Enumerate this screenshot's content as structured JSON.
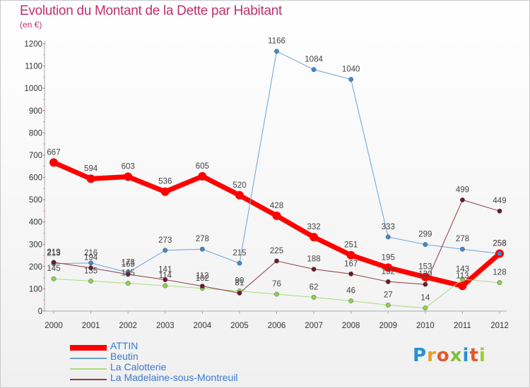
{
  "title": "Evolution du Montant de la Dette par Habitant",
  "unit": "(en €)",
  "logo": "Proxiti",
  "logo_colors": [
    "#2a8fd6",
    "#e8a020",
    "#e05a2a",
    "#7cc040",
    "#2a8fd6",
    "#e05a2a",
    "#9acd32"
  ],
  "chart_data": {
    "type": "line",
    "title": "Evolution du Montant de la Dette par Habitant",
    "ylabel": "(en €)",
    "xlabel": "",
    "x": [
      "2000",
      "2001",
      "2002",
      "2003",
      "2004",
      "2005",
      "2006",
      "2007",
      "2008",
      "2009",
      "2010",
      "2011",
      "2012"
    ],
    "ylim": [
      0,
      1200
    ],
    "yticks": [
      0,
      100,
      200,
      300,
      400,
      500,
      600,
      700,
      800,
      900,
      1000,
      1100,
      1200
    ],
    "grid": false,
    "legend_position": "bottom-left",
    "series": [
      {
        "name": "ATTIN",
        "color": "#ff0000",
        "marker_color": "#ff0000",
        "width": 7,
        "values": [
          667,
          594,
          603,
          536,
          605,
          520,
          428,
          332,
          251,
          195,
          153,
          113,
          258
        ],
        "labels": [
          "667",
          "594",
          "603",
          "536",
          "605",
          "520",
          "428",
          "332",
          "251",
          "195",
          "153",
          "113",
          "258"
        ]
      },
      {
        "name": "Beutin",
        "color": "#6aa3d8",
        "marker_color": "#3d8ad0",
        "width": 1,
        "values": [
          213,
          216,
          173,
          273,
          278,
          215,
          1166,
          1084,
          1040,
          333,
          299,
          278,
          258
        ],
        "labels": [
          "213",
          "216",
          "173",
          "273",
          "278",
          "215",
          "1166",
          "1084",
          "1040",
          "333",
          "299",
          "278",
          "258"
        ]
      },
      {
        "name": "La Calotterie",
        "color": "#a8dc80",
        "marker_color": "#8ed34a",
        "width": 1,
        "values": [
          145,
          135,
          125,
          114,
          102,
          90,
          76,
          62,
          46,
          27,
          14,
          143,
          128
        ],
        "labels": [
          "145",
          "135",
          "125",
          "114",
          "102",
          "90",
          "76",
          "62",
          "46",
          "27",
          "14",
          "143",
          "128"
        ]
      },
      {
        "name": "La Madelaine-sous-Montreuil",
        "color": "#8a3a44",
        "marker_color": "#6a1a2a",
        "width": 1,
        "values": [
          219,
          194,
          165,
          141,
          112,
          81,
          225,
          188,
          167,
          132,
          120,
          499,
          449
        ],
        "labels": [
          "219",
          "194",
          "165",
          "141",
          "112",
          "81",
          "225",
          "188",
          "167",
          "132",
          "120",
          "499",
          "449"
        ]
      }
    ]
  }
}
